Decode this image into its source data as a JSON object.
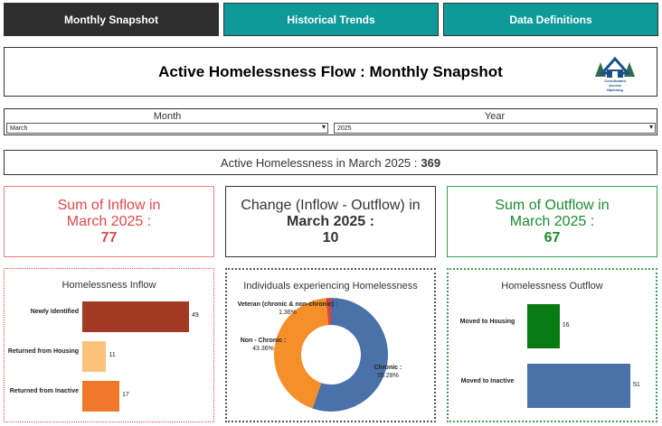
{
  "tabs": [
    {
      "label": "Monthly Snapshot"
    },
    {
      "label": "Historical Trends"
    },
    {
      "label": "Data Definitions"
    }
  ],
  "header": {
    "title": "Active Homelessness Flow : Monthly Snapshot",
    "logo_text": "Coordinated Access Nipissing"
  },
  "filters": {
    "month_label": "Month",
    "month_value": "March",
    "year_label": "Year",
    "year_value": "2025"
  },
  "active": {
    "label": "Active Homelessness in March 2025 :",
    "value": "369"
  },
  "kpis": {
    "inflow": {
      "line1": "Sum of Inflow in",
      "line2": "March 2025 :",
      "value": "77"
    },
    "change": {
      "line1": "Change (Inflow - Outflow) in",
      "line2": "March 2025 :",
      "value": "10"
    },
    "outflow": {
      "line1": "Sum of Outflow in",
      "line2": "March 2025 :",
      "value": "67"
    }
  },
  "chart_data": [
    {
      "type": "bar",
      "title": "Homelessness Inflow",
      "categories": [
        "Newly Identified",
        "Returned from Housing",
        "Returned from Inactive"
      ],
      "values": [
        49,
        11,
        17
      ],
      "colors": [
        "#a03a22",
        "#fcc27c",
        "#f0782a"
      ]
    },
    {
      "type": "pie",
      "title": "Individuals experiencing Homelessness",
      "labels": [
        "Chronic :",
        "Non - Chronic :",
        "Veteran (chronic & non-chronic) :"
      ],
      "values": [
        55.28,
        43.36,
        1.36
      ],
      "value_labels": [
        "55.28%",
        "43.36%",
        "1.36%"
      ],
      "colors": [
        "#4a72a8",
        "#f58f2a",
        "#e0403a"
      ]
    },
    {
      "type": "bar",
      "title": "Homelessness Outflow",
      "categories": [
        "Moved to Housing",
        "Moved to Inactive"
      ],
      "values": [
        16,
        51
      ],
      "colors": [
        "#0a7a12",
        "#4a72a8"
      ]
    }
  ]
}
